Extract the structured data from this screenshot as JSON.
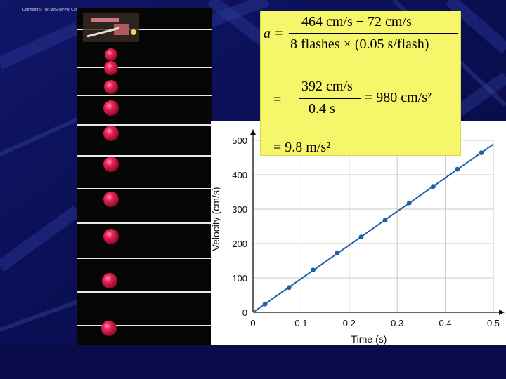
{
  "copyright": "Copyright © The McGraw-Hill Companies, Inc. Permission required for reproduction or display.",
  "equation": {
    "a_symbol": "a =",
    "line1_numerator": "464 cm/s − 72 cm/s",
    "line1_denominator": "8 flashes × (0.05 s/flash)",
    "line2_eq": "=",
    "line2_numerator": "392 cm/s",
    "line2_denominator": "0.4 s",
    "line2_result": "= 980 cm/s²",
    "line3_result": "= 9.8 m/s²"
  },
  "colors": {
    "background": "#0b0f5a",
    "equation_box": "#f6f66a",
    "plot_line": "#1f5fa8",
    "ball": "#e0144a"
  },
  "chart_data": {
    "type": "scatter",
    "xlabel": "Time (s)",
    "ylabel": "Velocity (cm/s)",
    "xlim": [
      0,
      0.5
    ],
    "ylim": [
      0,
      500
    ],
    "xticks": [
      "0",
      "0.1",
      "0.2",
      "0.3",
      "0.4",
      "0.5"
    ],
    "yticks": [
      "0",
      "100",
      "200",
      "300",
      "400",
      "500"
    ],
    "grid": true,
    "fit_line": true,
    "series": [
      {
        "x": [
          0.025,
          0.075,
          0.125,
          0.175,
          0.225,
          0.275,
          0.325,
          0.375,
          0.425,
          0.475
        ],
        "y": [
          24,
          72,
          123,
          172,
          219,
          268,
          318,
          366,
          416,
          464
        ]
      }
    ]
  }
}
